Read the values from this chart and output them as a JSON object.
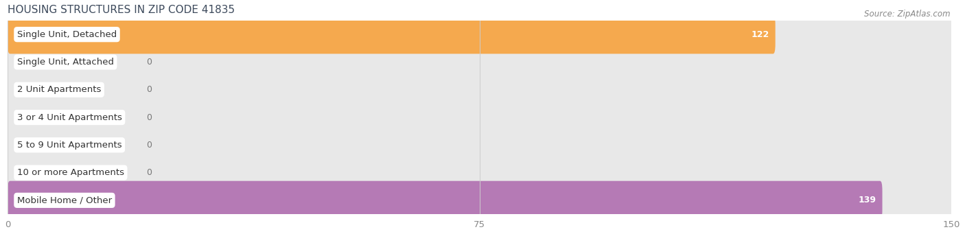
{
  "title": "HOUSING STRUCTURES IN ZIP CODE 41835",
  "source": "Source: ZipAtlas.com",
  "categories": [
    "Single Unit, Detached",
    "Single Unit, Attached",
    "2 Unit Apartments",
    "3 or 4 Unit Apartments",
    "5 to 9 Unit Apartments",
    "10 or more Apartments",
    "Mobile Home / Other"
  ],
  "values": [
    122,
    0,
    0,
    0,
    0,
    0,
    139
  ],
  "bar_colors": [
    "#F5A94E",
    "#F09090",
    "#A8C4E0",
    "#A8C4E0",
    "#A8C4E0",
    "#A8C4E0",
    "#B57AB5"
  ],
  "row_bg": "#EFEFEF",
  "pill_bg": "#E8E8E8",
  "xlim_min": 0,
  "xlim_max": 150,
  "xticks": [
    0,
    75,
    150
  ],
  "title_fontsize": 11,
  "label_fontsize": 9.5,
  "value_fontsize": 9,
  "source_fontsize": 8.5,
  "figure_bg": "#FFFFFF",
  "bar_height": 0.7,
  "label_bg": "#FFFFFF"
}
